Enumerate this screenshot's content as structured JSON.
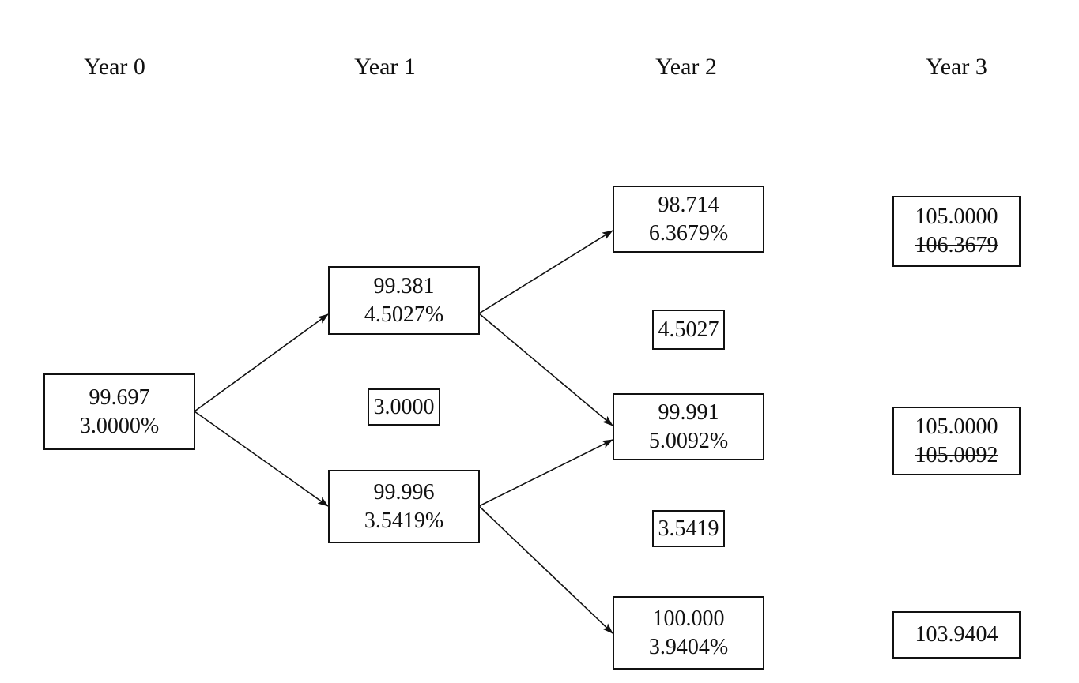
{
  "headers": {
    "y0": "Year 0",
    "y1": "Year 1",
    "y2": "Year 2",
    "y3": "Year 3"
  },
  "nodes": {
    "n0": {
      "price": "99.697",
      "rate": "3.0000%"
    },
    "n1u": {
      "price": "99.381",
      "rate": "4.5027%"
    },
    "n1d": {
      "price": "99.996",
      "rate": "3.5419%"
    },
    "n2u": {
      "price": "98.714",
      "rate": "6.3679%"
    },
    "n2m": {
      "price": "99.991",
      "rate": "5.0092%"
    },
    "n2d": {
      "price": "100.000",
      "rate": "3.9404%"
    }
  },
  "coupon_rates": {
    "y1": "3.0000",
    "y2_upper": "4.5027",
    "y2_lower": "3.5419"
  },
  "terminal": {
    "t_up": {
      "value": "105.0000",
      "struck": "106.3679"
    },
    "t_mid": {
      "value": "105.0000",
      "struck": "105.0092"
    },
    "t_down": {
      "value": "103.9404"
    }
  }
}
